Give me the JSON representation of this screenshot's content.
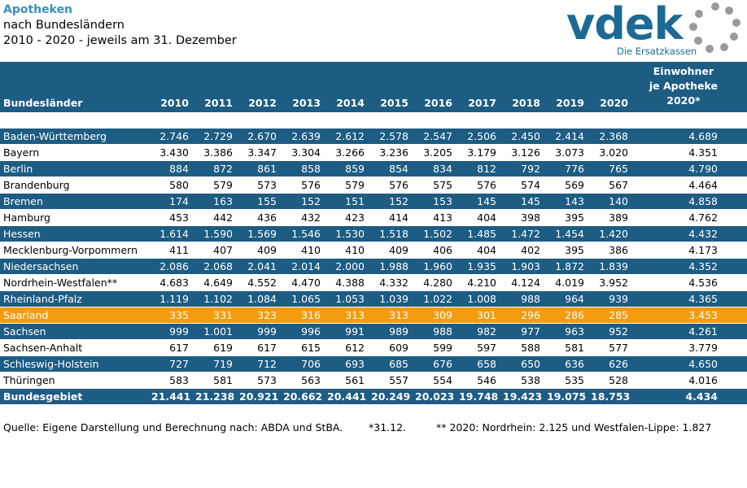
{
  "title": {
    "line1": "Apotheken",
    "line2": "nach Bundesländern",
    "line3": "2010 - 2020 - jeweils am 31. Dezember"
  },
  "logo": {
    "name": "vdek",
    "subtitle": "Die Ersatzkassen"
  },
  "colors": {
    "header": "#1d5c83",
    "highlight": "#f49c0d",
    "title": "#3a8fc0"
  },
  "table": {
    "label_header": "Bundesländer",
    "years": [
      "2010",
      "2011",
      "2012",
      "2013",
      "2014",
      "2015",
      "2016",
      "2017",
      "2018",
      "2019",
      "2020"
    ],
    "ew_header": [
      "Einwohner",
      "je Apotheke",
      "2020*"
    ],
    "rows": [
      {
        "name": "Baden-Württemberg",
        "values": [
          "2.746",
          "2.729",
          "2.670",
          "2.639",
          "2.612",
          "2.578",
          "2.547",
          "2.506",
          "2.450",
          "2.414",
          "2.368"
        ],
        "ew": "4.689",
        "style": "blue"
      },
      {
        "name": "Bayern",
        "values": [
          "3.430",
          "3.386",
          "3.347",
          "3.304",
          "3.266",
          "3.236",
          "3.205",
          "3.179",
          "3.126",
          "3.073",
          "3.020"
        ],
        "ew": "4.351",
        "style": "white"
      },
      {
        "name": "Berlin",
        "values": [
          "884",
          "872",
          "861",
          "858",
          "859",
          "854",
          "834",
          "812",
          "792",
          "776",
          "765"
        ],
        "ew": "4.790",
        "style": "blue"
      },
      {
        "name": "Brandenburg",
        "values": [
          "580",
          "579",
          "573",
          "576",
          "579",
          "576",
          "575",
          "576",
          "574",
          "569",
          "567"
        ],
        "ew": "4.464",
        "style": "white"
      },
      {
        "name": "Bremen",
        "values": [
          "174",
          "163",
          "155",
          "152",
          "151",
          "152",
          "153",
          "145",
          "145",
          "143",
          "140"
        ],
        "ew": "4.858",
        "style": "blue"
      },
      {
        "name": "Hamburg",
        "values": [
          "453",
          "442",
          "436",
          "432",
          "423",
          "414",
          "413",
          "404",
          "398",
          "395",
          "389"
        ],
        "ew": "4.762",
        "style": "white"
      },
      {
        "name": "Hessen",
        "values": [
          "1.614",
          "1.590",
          "1.569",
          "1.546",
          "1.530",
          "1.518",
          "1.502",
          "1.485",
          "1.472",
          "1.454",
          "1.420"
        ],
        "ew": "4.432",
        "style": "blue"
      },
      {
        "name": "Mecklenburg-Vorpommern",
        "values": [
          "411",
          "407",
          "409",
          "410",
          "410",
          "409",
          "406",
          "404",
          "402",
          "395",
          "386"
        ],
        "ew": "4.173",
        "style": "white"
      },
      {
        "name": "Niedersachsen",
        "values": [
          "2.086",
          "2.068",
          "2.041",
          "2.014",
          "2.000",
          "1.988",
          "1.960",
          "1.935",
          "1.903",
          "1.872",
          "1.839"
        ],
        "ew": "4.352",
        "style": "blue"
      },
      {
        "name": "Nordrhein-Westfalen**",
        "values": [
          "4.683",
          "4.649",
          "4.552",
          "4.470",
          "4.388",
          "4.332",
          "4.280",
          "4.210",
          "4.124",
          "4.019",
          "3.952"
        ],
        "ew": "4.536",
        "style": "white"
      },
      {
        "name": "Rheinland-Pfalz",
        "values": [
          "1.119",
          "1.102",
          "1.084",
          "1.065",
          "1.053",
          "1.039",
          "1.022",
          "1.008",
          "988",
          "964",
          "939"
        ],
        "ew": "4.365",
        "style": "blue"
      },
      {
        "name": "Saarland",
        "values": [
          "335",
          "331",
          "323",
          "316",
          "313",
          "313",
          "309",
          "301",
          "296",
          "286",
          "285"
        ],
        "ew": "3.453",
        "style": "orange"
      },
      {
        "name": "Sachsen",
        "values": [
          "999",
          "1.001",
          "999",
          "996",
          "991",
          "989",
          "988",
          "982",
          "977",
          "963",
          "952"
        ],
        "ew": "4.261",
        "style": "blue"
      },
      {
        "name": "Sachsen-Anhalt",
        "values": [
          "617",
          "619",
          "617",
          "615",
          "612",
          "609",
          "599",
          "597",
          "588",
          "581",
          "577"
        ],
        "ew": "3.779",
        "style": "white"
      },
      {
        "name": "Schleswig-Holstein",
        "values": [
          "727",
          "719",
          "712",
          "706",
          "693",
          "685",
          "676",
          "658",
          "650",
          "636",
          "626"
        ],
        "ew": "4.650",
        "style": "blue"
      },
      {
        "name": "Thüringen",
        "values": [
          "583",
          "581",
          "573",
          "563",
          "561",
          "557",
          "554",
          "546",
          "538",
          "535",
          "528"
        ],
        "ew": "4.016",
        "style": "white"
      }
    ],
    "total": {
      "name": "Bundesgebiet",
      "values": [
        "21.441",
        "21.238",
        "20.921",
        "20.662",
        "20.441",
        "20.249",
        "20.023",
        "19.748",
        "19.423",
        "19.075",
        "18.753"
      ],
      "ew": "4.434"
    }
  },
  "footer": {
    "source": "Quelle: Eigene Darstellung und Berechnung nach: ABDA und StBA.",
    "note1": "*31.12.",
    "note2": "** 2020: Nordrhein: 2.125 und Westfalen-Lippe: 1.827"
  }
}
